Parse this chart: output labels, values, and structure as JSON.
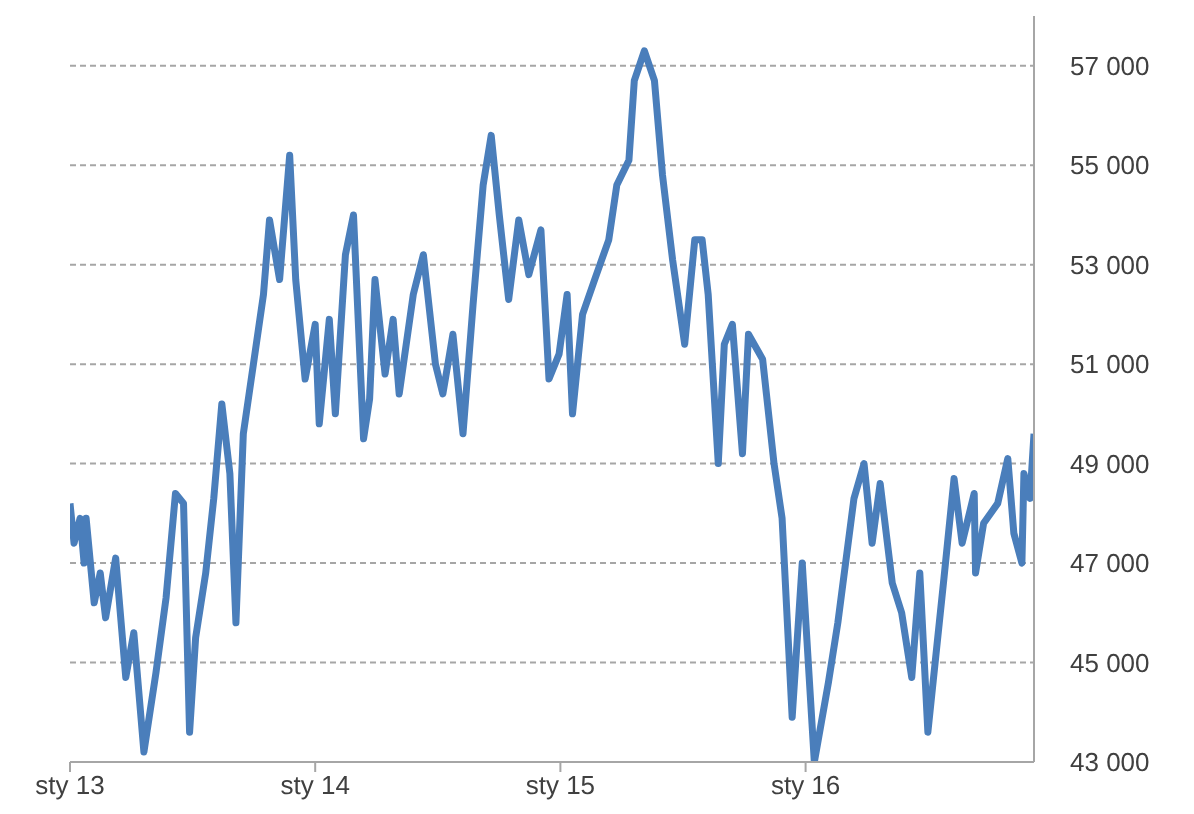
{
  "chart_data": {
    "type": "line",
    "x": [
      "2013-01-01",
      "2013-01-07",
      "2013-01-16",
      "2013-01-22",
      "2013-01-25",
      "2013-02-06",
      "2013-02-15",
      "2013-02-23",
      "2013-03-10",
      "2013-03-25",
      "2013-04-06",
      "2013-04-21",
      "2013-05-09",
      "2013-05-24",
      "2013-06-07",
      "2013-06-19",
      "2013-06-28",
      "2013-07-07",
      "2013-07-22",
      "2013-08-03",
      "2013-08-15",
      "2013-08-27",
      "2013-09-05",
      "2013-09-16",
      "2013-10-01",
      "2013-10-16",
      "2013-10-25",
      "2013-11-09",
      "2013-11-24",
      "2013-12-03",
      "2013-12-17",
      "2014-01-01",
      "2014-01-07",
      "2014-01-22",
      "2014-01-31",
      "2014-02-15",
      "2014-02-27",
      "2014-03-14",
      "2014-03-23",
      "2014-03-31",
      "2014-04-15",
      "2014-04-27",
      "2014-05-06",
      "2014-05-27",
      "2014-06-11",
      "2014-06-29",
      "2014-07-10",
      "2014-07-25",
      "2014-08-09",
      "2014-08-24",
      "2014-09-08",
      "2014-09-20",
      "2014-10-02",
      "2014-10-16",
      "2014-10-31",
      "2014-11-15",
      "2014-12-03",
      "2014-12-15",
      "2014-12-30",
      "2015-01-11",
      "2015-01-19",
      "2015-02-03",
      "2015-02-21",
      "2015-03-14",
      "2015-03-26",
      "2015-04-13",
      "2015-04-21",
      "2015-05-06",
      "2015-05-21",
      "2015-06-02",
      "2015-06-17",
      "2015-07-05",
      "2015-07-20",
      "2015-07-31",
      "2015-08-09",
      "2015-08-24",
      "2015-09-02",
      "2015-09-14",
      "2015-09-29",
      "2015-10-08",
      "2015-10-29",
      "2015-11-15",
      "2015-11-27",
      "2015-12-12",
      "2015-12-27",
      "2016-01-14",
      "2016-02-04",
      "2016-02-18",
      "2016-03-13",
      "2016-03-28",
      "2016-04-09",
      "2016-04-21",
      "2016-05-09",
      "2016-05-23",
      "2016-06-07",
      "2016-06-19",
      "2016-07-01",
      "2016-07-25",
      "2016-08-09",
      "2016-08-21",
      "2016-09-08",
      "2016-09-10",
      "2016-09-22",
      "2016-10-13",
      "2016-10-28",
      "2016-11-06",
      "2016-11-18",
      "2016-11-21",
      "2016-11-30",
      "2016-12-06"
    ],
    "series": [
      {
        "color": "#4a7ebb",
        "values": [
          48200,
          47400,
          47900,
          47000,
          47900,
          46200,
          46800,
          45900,
          47100,
          44700,
          45600,
          43200,
          44800,
          46300,
          48400,
          48200,
          43600,
          45500,
          46800,
          48300,
          50200,
          48800,
          45800,
          49600,
          51000,
          52400,
          53900,
          52700,
          55200,
          52700,
          50700,
          51800,
          49800,
          51900,
          50000,
          53200,
          54000,
          49500,
          50300,
          52700,
          50800,
          51900,
          50400,
          52400,
          53200,
          51000,
          50400,
          51600,
          49600,
          52200,
          54600,
          55600,
          54000,
          52300,
          53900,
          52800,
          53700,
          50700,
          51200,
          52400,
          50000,
          52000,
          52700,
          53500,
          54600,
          55100,
          56700,
          57300,
          56700,
          54800,
          53100,
          51400,
          53500,
          53500,
          52400,
          49000,
          51400,
          51800,
          49200,
          51600,
          51100,
          49000,
          47900,
          43900,
          47000,
          43000,
          44600,
          45800,
          48300,
          49000,
          47400,
          48600,
          46600,
          46000,
          44700,
          46800,
          43600,
          46700,
          48700,
          47400,
          48400,
          46800,
          47800,
          48200,
          49100,
          47600,
          47000,
          48800,
          48300,
          49600
        ]
      }
    ],
    "xlim": [
      "2013-01-01",
      "2016-12-06"
    ],
    "xticks": [
      {
        "value": "2013-01-01",
        "label": "sty 13"
      },
      {
        "value": "2014-01-01",
        "label": "sty 14"
      },
      {
        "value": "2015-01-01",
        "label": "sty 15"
      },
      {
        "value": "2016-01-01",
        "label": "sty 16"
      }
    ],
    "ylim": [
      43000,
      58000
    ],
    "yticks": [
      {
        "value": 43000,
        "label": "43 000"
      },
      {
        "value": 45000,
        "label": "45 000"
      },
      {
        "value": 47000,
        "label": "47 000"
      },
      {
        "value": 49000,
        "label": "49 000"
      },
      {
        "value": 51000,
        "label": "51 000"
      },
      {
        "value": 53000,
        "label": "53 000"
      },
      {
        "value": 55000,
        "label": "55 000"
      },
      {
        "value": 57000,
        "label": "57 000"
      }
    ],
    "grid": "y",
    "marker": "none",
    "line_style": "solid",
    "legend": false
  }
}
